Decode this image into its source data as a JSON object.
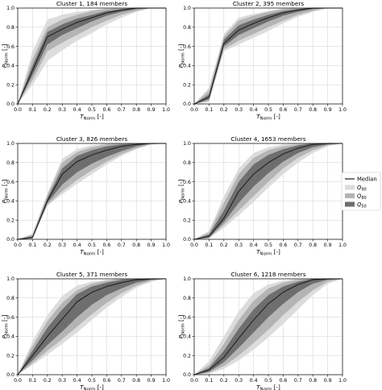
{
  "chart_data": [
    {
      "type": "area",
      "title": "Cluster 1, 184 members",
      "xlabel": "T_Norm [-]",
      "ylabel": "P_Norm [-]",
      "xlim": [
        0,
        1
      ],
      "ylim": [
        0,
        1
      ],
      "x": [
        0.0,
        0.1,
        0.2,
        0.3,
        0.4,
        0.5,
        0.6,
        0.7,
        0.8,
        0.9,
        1.0
      ],
      "median": [
        0.0,
        0.35,
        0.7,
        0.78,
        0.85,
        0.9,
        0.95,
        0.98,
        1.0,
        1.0,
        1.0
      ],
      "q50_lower": [
        0.0,
        0.3,
        0.62,
        0.72,
        0.79,
        0.86,
        0.92,
        0.96,
        0.99,
        1.0,
        1.0
      ],
      "q50_upper": [
        0.0,
        0.4,
        0.75,
        0.83,
        0.89,
        0.93,
        0.97,
        0.99,
        1.0,
        1.0,
        1.0
      ],
      "q80_lower": [
        0.0,
        0.25,
        0.55,
        0.64,
        0.72,
        0.8,
        0.87,
        0.93,
        0.97,
        1.0,
        1.0
      ],
      "q80_upper": [
        0.0,
        0.47,
        0.8,
        0.88,
        0.93,
        0.97,
        0.99,
        1.0,
        1.0,
        1.0,
        1.0
      ],
      "q90_lower": [
        0.0,
        0.2,
        0.45,
        0.56,
        0.66,
        0.74,
        0.83,
        0.9,
        0.96,
        1.0,
        1.0
      ],
      "q90_upper": [
        0.0,
        0.55,
        0.88,
        0.93,
        0.96,
        0.98,
        1.0,
        1.0,
        1.0,
        1.0,
        1.0
      ]
    },
    {
      "type": "area",
      "title": "Cluster 2, 395 members",
      "xlabel": "T_Norm [-]",
      "ylabel": "P_Norm [-]",
      "xlim": [
        0,
        1
      ],
      "ylim": [
        0,
        1
      ],
      "x": [
        0.0,
        0.1,
        0.2,
        0.3,
        0.4,
        0.5,
        0.6,
        0.7,
        0.8,
        0.9,
        1.0
      ],
      "median": [
        0.0,
        0.07,
        0.63,
        0.77,
        0.84,
        0.9,
        0.95,
        0.98,
        1.0,
        1.0,
        1.0
      ],
      "q50_lower": [
        0.0,
        0.05,
        0.6,
        0.72,
        0.79,
        0.86,
        0.92,
        0.96,
        0.99,
        1.0,
        1.0
      ],
      "q50_upper": [
        0.0,
        0.1,
        0.67,
        0.82,
        0.88,
        0.93,
        0.97,
        0.99,
        1.0,
        1.0,
        1.0
      ],
      "q80_lower": [
        0.0,
        0.03,
        0.57,
        0.66,
        0.73,
        0.8,
        0.87,
        0.93,
        0.97,
        1.0,
        1.0
      ],
      "q80_upper": [
        0.0,
        0.14,
        0.7,
        0.87,
        0.92,
        0.96,
        0.99,
        1.0,
        1.0,
        1.0,
        1.0
      ],
      "q90_lower": [
        0.0,
        0.02,
        0.55,
        0.62,
        0.69,
        0.76,
        0.84,
        0.91,
        0.96,
        1.0,
        1.0
      ],
      "q90_upper": [
        0.0,
        0.17,
        0.73,
        0.9,
        0.94,
        0.97,
        1.0,
        1.0,
        1.0,
        1.0,
        1.0
      ]
    },
    {
      "type": "area",
      "title": "Cluster 3, 826 members",
      "xlabel": "T_Norm [-]",
      "ylabel": "P_Norm [-]",
      "xlim": [
        0,
        1
      ],
      "ylim": [
        0,
        1
      ],
      "x": [
        0.0,
        0.1,
        0.2,
        0.3,
        0.4,
        0.5,
        0.6,
        0.7,
        0.8,
        0.9,
        1.0
      ],
      "median": [
        0.0,
        0.02,
        0.4,
        0.68,
        0.81,
        0.88,
        0.93,
        0.97,
        0.99,
        1.0,
        1.0
      ],
      "q50_lower": [
        0.0,
        0.01,
        0.38,
        0.57,
        0.7,
        0.79,
        0.86,
        0.92,
        0.97,
        1.0,
        1.0
      ],
      "q50_upper": [
        0.0,
        0.03,
        0.43,
        0.74,
        0.87,
        0.93,
        0.97,
        0.99,
        1.0,
        1.0,
        1.0
      ],
      "q80_lower": [
        0.0,
        0.01,
        0.36,
        0.5,
        0.62,
        0.72,
        0.81,
        0.89,
        0.95,
        0.99,
        1.0
      ],
      "q80_upper": [
        0.0,
        0.05,
        0.46,
        0.8,
        0.91,
        0.96,
        0.99,
        1.0,
        1.0,
        1.0,
        1.0
      ],
      "q90_lower": [
        0.0,
        0.0,
        0.35,
        0.47,
        0.58,
        0.68,
        0.78,
        0.87,
        0.94,
        0.99,
        1.0
      ],
      "q90_upper": [
        0.0,
        0.06,
        0.48,
        0.84,
        0.94,
        0.98,
        1.0,
        1.0,
        1.0,
        1.0,
        1.0
      ]
    },
    {
      "type": "area",
      "title": "Cluster 4, 1653 members",
      "xlabel": "T_Norm [-]",
      "ylabel": "P_Norm [-]",
      "xlim": [
        0,
        1
      ],
      "ylim": [
        0,
        1
      ],
      "x": [
        0.0,
        0.1,
        0.2,
        0.3,
        0.4,
        0.5,
        0.6,
        0.7,
        0.8,
        0.9,
        1.0
      ],
      "median": [
        0.0,
        0.03,
        0.22,
        0.5,
        0.68,
        0.8,
        0.89,
        0.95,
        0.99,
        1.0,
        1.0
      ],
      "q50_lower": [
        0.0,
        0.02,
        0.18,
        0.38,
        0.55,
        0.69,
        0.81,
        0.9,
        0.96,
        0.99,
        1.0
      ],
      "q50_upper": [
        0.0,
        0.05,
        0.3,
        0.6,
        0.78,
        0.88,
        0.94,
        0.98,
        1.0,
        1.0,
        1.0
      ],
      "q80_lower": [
        0.0,
        0.01,
        0.15,
        0.3,
        0.45,
        0.6,
        0.74,
        0.85,
        0.93,
        0.98,
        1.0
      ],
      "q80_upper": [
        0.0,
        0.07,
        0.38,
        0.68,
        0.85,
        0.93,
        0.97,
        0.99,
        1.0,
        1.0,
        1.0
      ],
      "q90_lower": [
        0.0,
        0.01,
        0.12,
        0.25,
        0.39,
        0.54,
        0.68,
        0.8,
        0.9,
        0.97,
        1.0
      ],
      "q90_upper": [
        0.0,
        0.09,
        0.45,
        0.74,
        0.9,
        0.96,
        0.99,
        1.0,
        1.0,
        1.0,
        1.0
      ]
    },
    {
      "type": "area",
      "title": "Cluster 5, 371 members",
      "xlabel": "T_Norm [-]",
      "ylabel": "P_Norm [-]",
      "xlim": [
        0,
        1
      ],
      "ylim": [
        0,
        1
      ],
      "x": [
        0.0,
        0.1,
        0.2,
        0.3,
        0.4,
        0.5,
        0.6,
        0.7,
        0.8,
        0.9,
        1.0
      ],
      "median": [
        0.0,
        0.2,
        0.4,
        0.58,
        0.76,
        0.86,
        0.92,
        0.96,
        0.99,
        1.0,
        1.0
      ],
      "q50_lower": [
        0.0,
        0.15,
        0.31,
        0.45,
        0.6,
        0.73,
        0.83,
        0.9,
        0.96,
        0.99,
        1.0
      ],
      "q50_upper": [
        0.0,
        0.25,
        0.49,
        0.68,
        0.84,
        0.92,
        0.96,
        0.99,
        1.0,
        1.0,
        1.0
      ],
      "q80_lower": [
        0.0,
        0.12,
        0.25,
        0.37,
        0.5,
        0.63,
        0.75,
        0.85,
        0.93,
        0.98,
        1.0
      ],
      "q80_upper": [
        0.0,
        0.3,
        0.56,
        0.75,
        0.88,
        0.95,
        0.98,
        1.0,
        1.0,
        1.0,
        1.0
      ],
      "q90_lower": [
        0.0,
        0.1,
        0.21,
        0.32,
        0.44,
        0.57,
        0.7,
        0.81,
        0.91,
        0.97,
        1.0
      ],
      "q90_upper": [
        0.0,
        0.35,
        0.62,
        0.82,
        0.93,
        0.97,
        0.99,
        1.0,
        1.0,
        1.0,
        1.0
      ]
    },
    {
      "type": "area",
      "title": "Cluster 6, 1218 members",
      "xlabel": "T_Norm [-]",
      "ylabel": "P_Norm [-]",
      "xlim": [
        0,
        1
      ],
      "ylim": [
        0,
        1
      ],
      "x": [
        0.0,
        0.1,
        0.2,
        0.3,
        0.4,
        0.5,
        0.6,
        0.7,
        0.8,
        0.9,
        1.0
      ],
      "median": [
        0.0,
        0.05,
        0.18,
        0.38,
        0.57,
        0.74,
        0.86,
        0.94,
        0.99,
        1.0,
        1.0
      ],
      "q50_lower": [
        0.0,
        0.03,
        0.13,
        0.28,
        0.44,
        0.6,
        0.74,
        0.86,
        0.95,
        0.99,
        1.0
      ],
      "q50_upper": [
        0.0,
        0.07,
        0.25,
        0.48,
        0.68,
        0.83,
        0.92,
        0.97,
        1.0,
        1.0,
        1.0
      ],
      "q80_lower": [
        0.0,
        0.02,
        0.09,
        0.2,
        0.33,
        0.47,
        0.62,
        0.76,
        0.88,
        0.97,
        1.0
      ],
      "q80_upper": [
        0.0,
        0.1,
        0.32,
        0.57,
        0.77,
        0.9,
        0.96,
        0.99,
        1.0,
        1.0,
        1.0
      ],
      "q90_lower": [
        0.0,
        0.01,
        0.06,
        0.15,
        0.26,
        0.39,
        0.53,
        0.68,
        0.83,
        0.95,
        1.0
      ],
      "q90_upper": [
        0.0,
        0.14,
        0.4,
        0.66,
        0.85,
        0.94,
        0.98,
        1.0,
        1.0,
        1.0,
        1.0
      ]
    }
  ],
  "axis": {
    "xticks": [
      "0.0",
      "0.1",
      "0.2",
      "0.3",
      "0.4",
      "0.5",
      "0.6",
      "0.7",
      "0.8",
      "0.9",
      "1.0"
    ],
    "yticks": [
      "0.0",
      "0.2",
      "0.4",
      "0.6",
      "0.8",
      "1.0"
    ]
  },
  "legend": {
    "placement": "right",
    "items": [
      {
        "key": "median",
        "label": "Median",
        "symbol": "line",
        "color": "#1a1a1a"
      },
      {
        "key": "q90",
        "label": "Q",
        "sub": "90",
        "symbol": "patch",
        "color": "#dcdcdc"
      },
      {
        "key": "q80",
        "label": "Q",
        "sub": "80",
        "symbol": "patch",
        "color": "#b4b4b4"
      },
      {
        "key": "q50",
        "label": "Q",
        "sub": "50",
        "symbol": "patch",
        "color": "#6e6e6e"
      }
    ]
  },
  "colors": {
    "q90": "#dcdcdc",
    "q80": "#b4b4b4",
    "q50": "#6e6e6e",
    "median": "#1a1a1a",
    "grid": "#cfcfcf"
  }
}
